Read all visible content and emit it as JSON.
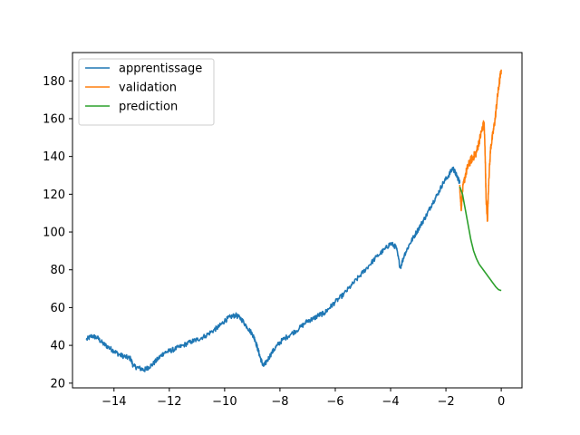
{
  "chart_data": {
    "type": "line",
    "title": "",
    "xlabel": "",
    "ylabel": "",
    "xlim": [
      -15.5,
      0.75
    ],
    "ylim": [
      17.5,
      195
    ],
    "xticks": [
      -14,
      -12,
      -10,
      -8,
      -6,
      -4,
      -2,
      0
    ],
    "yticks": [
      20,
      40,
      60,
      80,
      100,
      120,
      140,
      160,
      180
    ],
    "xtick_labels": [
      "−14",
      "−12",
      "−10",
      "−8",
      "−6",
      "−4",
      "−2",
      "0"
    ],
    "ytick_labels": [
      "20",
      "40",
      "60",
      "80",
      "100",
      "120",
      "140",
      "160",
      "180"
    ],
    "grid": false,
    "legend_position": "top-left",
    "series": [
      {
        "name": "apprentissage",
        "color": "#1f77b4",
        "noise": 1.3,
        "points": [
          [
            -15.0,
            43
          ],
          [
            -14.8,
            45
          ],
          [
            -14.6,
            44
          ],
          [
            -14.4,
            41
          ],
          [
            -14.2,
            39
          ],
          [
            -14.0,
            37
          ],
          [
            -13.8,
            35
          ],
          [
            -13.6,
            34
          ],
          [
            -13.4,
            33
          ],
          [
            -13.3,
            29
          ],
          [
            -13.1,
            28
          ],
          [
            -12.9,
            27
          ],
          [
            -12.8,
            28
          ],
          [
            -12.6,
            30
          ],
          [
            -12.4,
            33
          ],
          [
            -12.2,
            36
          ],
          [
            -12.0,
            37
          ],
          [
            -11.8,
            38
          ],
          [
            -11.5,
            40
          ],
          [
            -11.2,
            42
          ],
          [
            -11.0,
            43
          ],
          [
            -10.7,
            45
          ],
          [
            -10.4,
            48
          ],
          [
            -10.2,
            50
          ],
          [
            -10.0,
            53
          ],
          [
            -9.8,
            55
          ],
          [
            -9.6,
            56
          ],
          [
            -9.4,
            54
          ],
          [
            -9.2,
            50
          ],
          [
            -9.0,
            46
          ],
          [
            -8.9,
            43
          ],
          [
            -8.8,
            38
          ],
          [
            -8.7,
            33
          ],
          [
            -8.6,
            29
          ],
          [
            -8.5,
            31
          ],
          [
            -8.3,
            36
          ],
          [
            -8.1,
            40
          ],
          [
            -7.9,
            43
          ],
          [
            -7.6,
            46
          ],
          [
            -7.3,
            49
          ],
          [
            -7.0,
            53
          ],
          [
            -6.8,
            54
          ],
          [
            -6.6,
            56
          ],
          [
            -6.4,
            57
          ],
          [
            -6.2,
            60
          ],
          [
            -6.0,
            63
          ],
          [
            -5.7,
            67
          ],
          [
            -5.4,
            72
          ],
          [
            -5.1,
            77
          ],
          [
            -4.8,
            82
          ],
          [
            -4.5,
            87
          ],
          [
            -4.2,
            91
          ],
          [
            -4.0,
            94
          ],
          [
            -3.8,
            92
          ],
          [
            -3.65,
            81
          ],
          [
            -3.5,
            88
          ],
          [
            -3.3,
            94
          ],
          [
            -3.1,
            99
          ],
          [
            -2.9,
            104
          ],
          [
            -2.7,
            109
          ],
          [
            -2.5,
            115
          ],
          [
            -2.3,
            120
          ],
          [
            -2.1,
            126
          ],
          [
            -1.9,
            130
          ],
          [
            -1.75,
            134
          ],
          [
            -1.65,
            131
          ],
          [
            -1.55,
            128
          ],
          [
            -1.5,
            126
          ]
        ]
      },
      {
        "name": "validation",
        "color": "#ff7f0e",
        "noise": 2.2,
        "points": [
          [
            -1.5,
            125
          ],
          [
            -1.45,
            112
          ],
          [
            -1.4,
            122
          ],
          [
            -1.3,
            130
          ],
          [
            -1.2,
            135
          ],
          [
            -1.1,
            138
          ],
          [
            -1.0,
            140
          ],
          [
            -0.9,
            142
          ],
          [
            -0.8,
            148
          ],
          [
            -0.7,
            154
          ],
          [
            -0.62,
            158
          ],
          [
            -0.58,
            140
          ],
          [
            -0.55,
            118
          ],
          [
            -0.5,
            106
          ],
          [
            -0.45,
            128
          ],
          [
            -0.38,
            145
          ],
          [
            -0.3,
            152
          ],
          [
            -0.22,
            160
          ],
          [
            -0.15,
            170
          ],
          [
            -0.08,
            178
          ],
          [
            0.0,
            186
          ]
        ]
      },
      {
        "name": "prediction",
        "color": "#2ca02c",
        "noise": 0,
        "points": [
          [
            -1.5,
            124
          ],
          [
            -1.4,
            120
          ],
          [
            -1.3,
            112
          ],
          [
            -1.2,
            104
          ],
          [
            -1.1,
            96
          ],
          [
            -1.0,
            90
          ],
          [
            -0.9,
            86
          ],
          [
            -0.8,
            83
          ],
          [
            -0.7,
            81
          ],
          [
            -0.6,
            79
          ],
          [
            -0.5,
            77
          ],
          [
            -0.4,
            75
          ],
          [
            -0.3,
            73
          ],
          [
            -0.2,
            71
          ],
          [
            -0.1,
            69.5
          ],
          [
            0.0,
            69
          ]
        ]
      }
    ]
  }
}
